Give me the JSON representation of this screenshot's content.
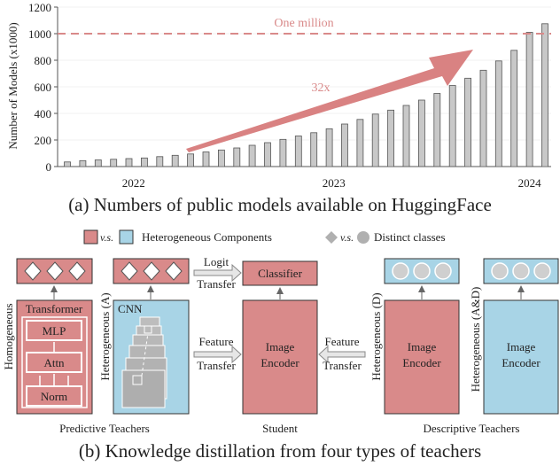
{
  "chart_data": {
    "type": "bar",
    "ylabel": "Number of Models (x1000)",
    "ylim": [
      0,
      1200
    ],
    "yticks": [
      "0",
      "200",
      "400",
      "600",
      "800",
      "1000",
      "1200"
    ],
    "xticks": [
      "2022",
      "2023",
      "2024"
    ],
    "values": [
      35,
      45,
      50,
      55,
      60,
      65,
      75,
      85,
      95,
      110,
      125,
      140,
      160,
      180,
      205,
      230,
      255,
      285,
      320,
      355,
      395,
      425,
      460,
      500,
      550,
      610,
      665,
      725,
      795,
      875,
      1010,
      1075
    ],
    "reference_line": {
      "value": 1000,
      "label": "One million"
    },
    "annotation": "32x",
    "colors": {
      "bar": "#c8c8c8",
      "reference": "#d98a8a",
      "arrow": "#d77b7b"
    }
  },
  "caption_a": "(a) Numbers of public models available on HuggingFace",
  "legend": {
    "vs": "v.s.",
    "hetero": "Heterogeneous Components",
    "distinct": "Distinct classes"
  },
  "diagram": {
    "transformer": "Transformer",
    "mlp": "MLP",
    "attn": "Attn",
    "norm": "Norm",
    "homogeneous": "Homogeneous",
    "cnn": "CNN",
    "hetero_a": "Heterogeneous (A)",
    "logit": "Logit",
    "transfer": "Transfer",
    "classifier": "Classifier",
    "feature": "Feature",
    "image": "Image",
    "encoder": "Encoder",
    "hetero_d": "Heterogeneous (D)",
    "hetero_ad": "Heterogeneous (A&D)",
    "predictive": "Predictive Teachers",
    "student": "Student",
    "descriptive": "Descriptive Teachers",
    "colors": {
      "red": "#d98a8a",
      "blue": "#a8d4e6",
      "border": "#333333"
    }
  },
  "caption_b": "(b) Knowledge distillation from four types of teachers"
}
